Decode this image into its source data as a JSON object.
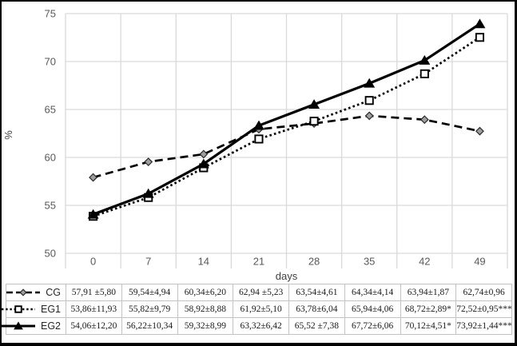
{
  "chart_data": {
    "type": "line",
    "title": "",
    "xlabel": "days",
    "ylabel": "%",
    "x": [
      "0",
      "7",
      "14",
      "21",
      "28",
      "35",
      "42",
      "49"
    ],
    "ylim": [
      50,
      75
    ],
    "yticks": [
      50,
      55,
      60,
      65,
      70,
      75
    ],
    "grid": true,
    "legend_position": "table-left",
    "series": [
      {
        "name": "CG",
        "style": "dashed",
        "marker": "diamond",
        "marker_fill": "#9e9e9e",
        "color": "#000000",
        "values": [
          57.91,
          59.54,
          60.34,
          62.94,
          63.54,
          64.34,
          63.94,
          62.74
        ],
        "cells": [
          "57,91 ±5,80",
          "59,54±4,94",
          "60,34±6,20",
          "62,94 ±5,23",
          "63,54±4,61",
          "64,34±4,14",
          "63,94±1,87",
          "62,74±0,96"
        ]
      },
      {
        "name": "EG1",
        "style": "dotted",
        "marker": "square",
        "marker_fill": "#ffffff",
        "color": "#000000",
        "values": [
          53.86,
          55.82,
          58.92,
          61.92,
          63.78,
          65.94,
          68.72,
          72.52
        ],
        "cells": [
          "53,86±11,93",
          "55,82±9,79",
          "58,92±8,88",
          "61,92±5,10",
          "63,78±6,04",
          "65,94±4,06",
          "68,72±2,89*",
          "72,52±0,95***"
        ]
      },
      {
        "name": "EG2",
        "style": "solid",
        "marker": "triangle",
        "marker_fill": "#000000",
        "color": "#000000",
        "values": [
          54.06,
          56.22,
          59.32,
          63.32,
          65.52,
          67.72,
          70.12,
          73.92
        ],
        "cells": [
          "54,06±12,20",
          "56,22±10,34",
          "59,32±8,99",
          "63,32±6,42",
          "65,52 ±7,38",
          "67,72±6,06",
          "70,12±4,51*",
          "73,92±1,44***"
        ]
      }
    ]
  },
  "colors": {
    "grid": "#d9d9d9",
    "axis_text": "#595959",
    "line": "#000000",
    "table_border": "#c3c3c3",
    "table_text": "#1a1a1a",
    "frame": "#000000",
    "background": "#ffffff"
  }
}
